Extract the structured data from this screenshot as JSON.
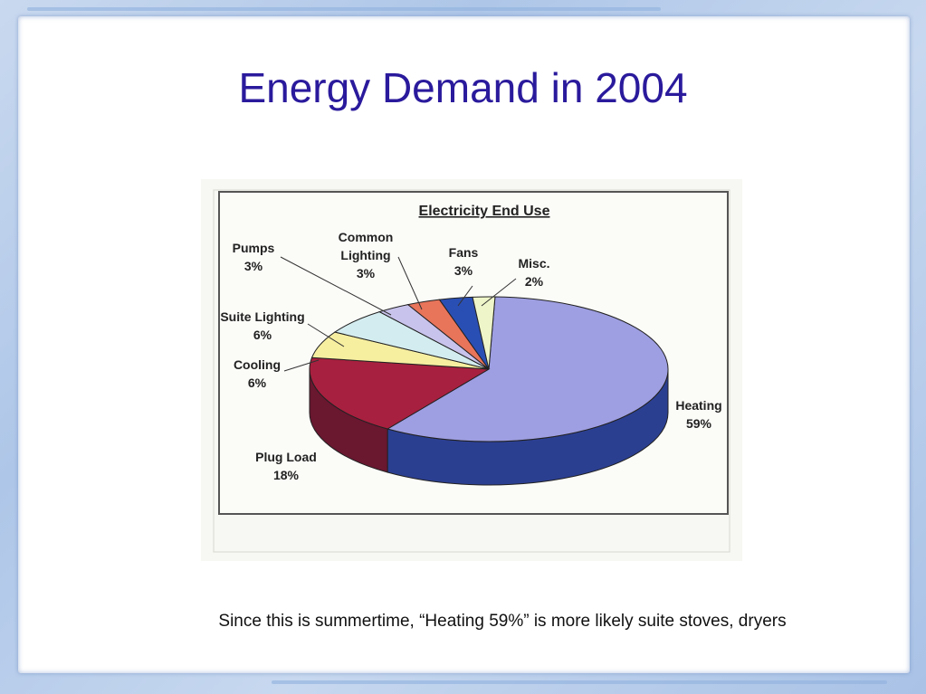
{
  "slide": {
    "title": "Energy Demand in 2004",
    "caption": "Since this is summertime, “Heating 59%” is more likely suite stoves, dryers"
  },
  "colors": {
    "title": "#2a1a9c",
    "frame": "#aec6e8"
  },
  "chart_data": {
    "type": "pie",
    "title": "Electricity End Use",
    "slices": [
      {
        "label": "Heating",
        "value": 59,
        "value_label": "59%",
        "color": "#9e9ee2",
        "side": "#2b3f91"
      },
      {
        "label": "Plug Load",
        "value": 18,
        "value_label": "18%",
        "color": "#a8203f",
        "side": "#6a1730"
      },
      {
        "label": "Cooling",
        "value": 6,
        "value_label": "6%",
        "color": "#f7efa0",
        "side": "#bdb670"
      },
      {
        "label": "Suite Lighting",
        "value": 6,
        "value_label": "6%",
        "color": "#d3ecef",
        "side": "#9db5b8"
      },
      {
        "label": "Pumps",
        "value": 3,
        "value_label": "3%",
        "color": "#c8c3ec",
        "side": "#8f8ab5"
      },
      {
        "label": "Common Lighting",
        "value": 3,
        "value_label": "3%",
        "color": "#e8745a",
        "side": "#a84a35"
      },
      {
        "label": "Fans",
        "value": 3,
        "value_label": "3%",
        "color": "#2a4fb4",
        "side": "#1a2f70"
      },
      {
        "label": "Misc.",
        "value": 2,
        "value_label": "2%",
        "color": "#eef5c8",
        "side": "#b5bb8f"
      }
    ]
  }
}
